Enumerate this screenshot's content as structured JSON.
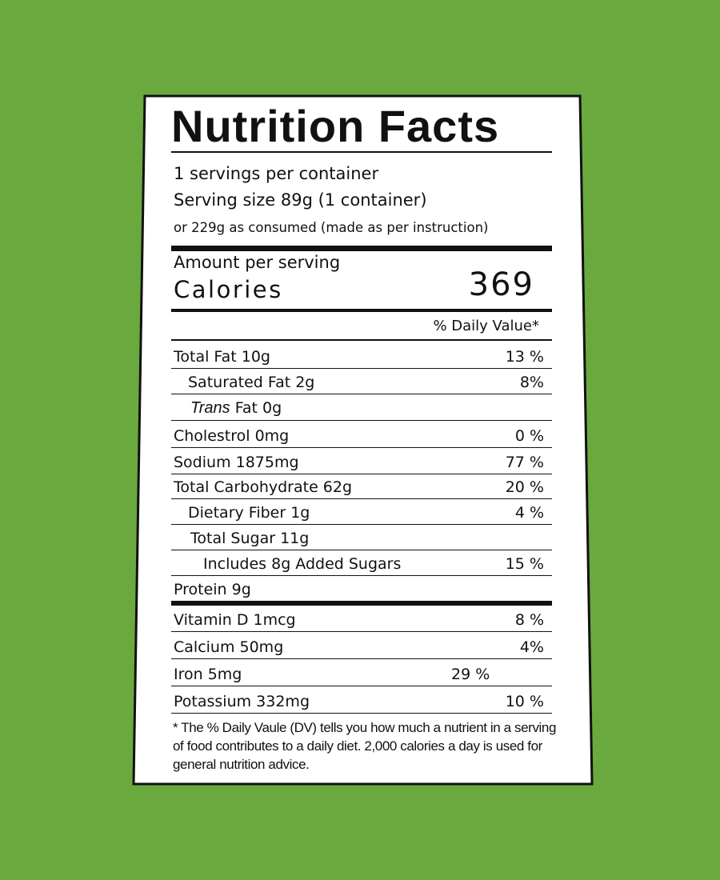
{
  "label": {
    "title": "Nutrition Facts",
    "servings_per_container": "1 servings per container",
    "serving_size": "Serving size 89g (1 container)",
    "as_consumed": "or 229g as consumed (made as per instruction)",
    "amount_per_serving": "Amount per serving",
    "calories_label": "Calories",
    "calories_value": "369",
    "daily_value_header": "% Daily Value*",
    "nutrients": [
      {
        "label": "Total Fat 10g",
        "percent": "13 %"
      },
      {
        "label": "Saturated Fat 2g",
        "percent": "8%"
      },
      {
        "label_italic": "Trans",
        "label": "Fat 0g"
      },
      {
        "label": "Cholestrol 0mg",
        "percent": "0 %"
      },
      {
        "label": "Sodium 1875mg",
        "percent": "77 %"
      },
      {
        "label": "Total Carbohydrate 62g",
        "percent": "20 %"
      },
      {
        "label": "Dietary Fiber 1g",
        "percent": "4 %"
      },
      {
        "label": "Total Sugar 11g"
      },
      {
        "label": "Includes 8g Added Sugars",
        "percent": "15 %"
      },
      {
        "label": "Protein 9g"
      }
    ],
    "vitamins": [
      {
        "label": "Vitamin D 1mcg",
        "percent": "8 %"
      },
      {
        "label": "Calcium 50mg",
        "percent": "4%"
      },
      {
        "label": "Iron 5mg",
        "percent": "29 %"
      },
      {
        "label": "Potassium 332mg",
        "percent": "10 %"
      }
    ],
    "footnote": "* The % Daily Vaule (DV) tells you how much a nutrient in a serving of food contributes to a daily diet. 2,000 calories a day is used for general nutrition advice."
  }
}
